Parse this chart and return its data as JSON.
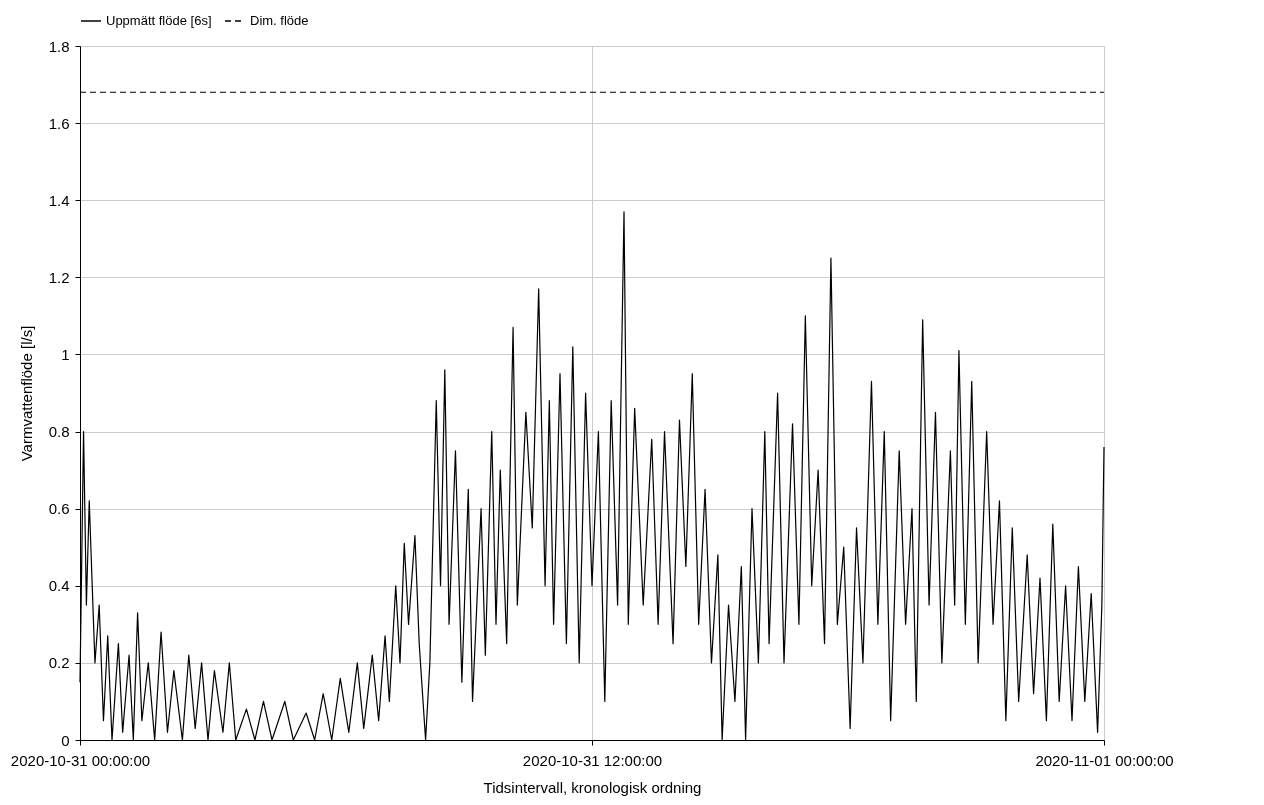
{
  "chart_data": {
    "type": "line",
    "xlabel": "Tidsintervall, kronologisk ordning",
    "ylabel": "Varmvattenflöde [l/s]",
    "xlim": [
      "2020-10-31T00:00",
      "2020-11-01T00:00"
    ],
    "xticks": [
      {
        "value": "2020-10-31T00:00",
        "label": "2020-10-31 00:00:00"
      },
      {
        "value": "2020-10-31T12:00",
        "label": "2020-10-31 12:00:00"
      },
      {
        "value": "2020-11-01T00:00",
        "label": "2020-11-01 00:00:00"
      }
    ],
    "ylim": [
      0,
      1.8
    ],
    "yticks": [
      0,
      0.2,
      0.4,
      0.6,
      0.8,
      1,
      1.2,
      1.4,
      1.6,
      1.8
    ],
    "grid": true,
    "legend": "top",
    "series": [
      {
        "name": "Uppmätt flöde [6s]",
        "color": "#000000",
        "line_style": "solid",
        "x": [
          "2020-10-31T00:00",
          "2020-10-31T00:05",
          "2020-10-31T00:09",
          "2020-10-31T00:13",
          "2020-10-31T00:21",
          "2020-10-31T00:27",
          "2020-10-31T00:33",
          "2020-10-31T00:39",
          "2020-10-31T00:45",
          "2020-10-31T00:54",
          "2020-10-31T01:00",
          "2020-10-31T01:09",
          "2020-10-31T01:15",
          "2020-10-31T01:21",
          "2020-10-31T01:27",
          "2020-10-31T01:36",
          "2020-10-31T01:45",
          "2020-10-31T01:54",
          "2020-10-31T02:03",
          "2020-10-31T02:12",
          "2020-10-31T02:24",
          "2020-10-31T02:33",
          "2020-10-31T02:42",
          "2020-10-31T02:51",
          "2020-10-31T03:00",
          "2020-10-31T03:09",
          "2020-10-31T03:21",
          "2020-10-31T03:30",
          "2020-10-31T03:39",
          "2020-10-31T03:54",
          "2020-10-31T04:06",
          "2020-10-31T04:18",
          "2020-10-31T04:30",
          "2020-10-31T04:48",
          "2020-10-31T05:00",
          "2020-10-31T05:18",
          "2020-10-31T05:30",
          "2020-10-31T05:42",
          "2020-10-31T05:54",
          "2020-10-31T06:06",
          "2020-10-31T06:18",
          "2020-10-31T06:30",
          "2020-10-31T06:39",
          "2020-10-31T06:51",
          "2020-10-31T07:00",
          "2020-10-31T07:09",
          "2020-10-31T07:15",
          "2020-10-31T07:24",
          "2020-10-31T07:30",
          "2020-10-31T07:36",
          "2020-10-31T07:42",
          "2020-10-31T07:51",
          "2020-10-31T07:57",
          "2020-10-31T08:06",
          "2020-10-31T08:12",
          "2020-10-31T08:21",
          "2020-10-31T08:27",
          "2020-10-31T08:33",
          "2020-10-31T08:39",
          "2020-10-31T08:48",
          "2020-10-31T08:57",
          "2020-10-31T09:06",
          "2020-10-31T09:12",
          "2020-10-31T09:24",
          "2020-10-31T09:30",
          "2020-10-31T09:39",
          "2020-10-31T09:45",
          "2020-10-31T09:51",
          "2020-10-31T10:00",
          "2020-10-31T10:09",
          "2020-10-31T10:15",
          "2020-10-31T10:27",
          "2020-10-31T10:36",
          "2020-10-31T10:45",
          "2020-10-31T10:54",
          "2020-10-31T11:00",
          "2020-10-31T11:06",
          "2020-10-31T11:15",
          "2020-10-31T11:24",
          "2020-10-31T11:33",
          "2020-10-31T11:42",
          "2020-10-31T11:51",
          "2020-10-31T12:00",
          "2020-10-31T12:09",
          "2020-10-31T12:18",
          "2020-10-31T12:27",
          "2020-10-31T12:36",
          "2020-10-31T12:45",
          "2020-10-31T12:51",
          "2020-10-31T13:00",
          "2020-10-31T13:12",
          "2020-10-31T13:24",
          "2020-10-31T13:33",
          "2020-10-31T13:42",
          "2020-10-31T13:54",
          "2020-10-31T14:03",
          "2020-10-31T14:12",
          "2020-10-31T14:21",
          "2020-10-31T14:30",
          "2020-10-31T14:39",
          "2020-10-31T14:48",
          "2020-10-31T14:57",
          "2020-10-31T15:03",
          "2020-10-31T15:12",
          "2020-10-31T15:21",
          "2020-10-31T15:30",
          "2020-10-31T15:36",
          "2020-10-31T15:45",
          "2020-10-31T15:54",
          "2020-10-31T16:03",
          "2020-10-31T16:09",
          "2020-10-31T16:21",
          "2020-10-31T16:30",
          "2020-10-31T16:42",
          "2020-10-31T16:51",
          "2020-10-31T17:00",
          "2020-10-31T17:09",
          "2020-10-31T17:18",
          "2020-10-31T17:27",
          "2020-10-31T17:36",
          "2020-10-31T17:45",
          "2020-10-31T17:54",
          "2020-10-31T18:03",
          "2020-10-31T18:12",
          "2020-10-31T18:21",
          "2020-10-31T18:33",
          "2020-10-31T18:42",
          "2020-10-31T18:51",
          "2020-10-31T19:00",
          "2020-10-31T19:12",
          "2020-10-31T19:21",
          "2020-10-31T19:30",
          "2020-10-31T19:36",
          "2020-10-31T19:45",
          "2020-10-31T19:54",
          "2020-10-31T20:03",
          "2020-10-31T20:12",
          "2020-10-31T20:24",
          "2020-10-31T20:30",
          "2020-10-31T20:36",
          "2020-10-31T20:45",
          "2020-10-31T20:54",
          "2020-10-31T21:03",
          "2020-10-31T21:15",
          "2020-10-31T21:24",
          "2020-10-31T21:33",
          "2020-10-31T21:42",
          "2020-10-31T21:51",
          "2020-10-31T22:00",
          "2020-10-31T22:12",
          "2020-10-31T22:21",
          "2020-10-31T22:30",
          "2020-10-31T22:39",
          "2020-10-31T22:48",
          "2020-10-31T22:57",
          "2020-10-31T23:06",
          "2020-10-31T23:15",
          "2020-10-31T23:24",
          "2020-10-31T23:33",
          "2020-10-31T23:42",
          "2020-10-31T23:51",
          "2020-10-31T23:57",
          "2020-11-01T00:00"
        ],
        "values": [
          0.15,
          0.8,
          0.35,
          0.62,
          0.2,
          0.35,
          0.05,
          0.27,
          0.0,
          0.25,
          0.02,
          0.22,
          0.0,
          0.33,
          0.05,
          0.2,
          0.0,
          0.28,
          0.02,
          0.18,
          0.0,
          0.22,
          0.03,
          0.2,
          0.0,
          0.18,
          0.02,
          0.2,
          0.0,
          0.08,
          0.0,
          0.1,
          0.0,
          0.1,
          0.0,
          0.07,
          0.0,
          0.12,
          0.0,
          0.16,
          0.02,
          0.2,
          0.03,
          0.22,
          0.05,
          0.27,
          0.1,
          0.4,
          0.2,
          0.51,
          0.3,
          0.53,
          0.25,
          0.0,
          0.2,
          0.88,
          0.4,
          0.96,
          0.3,
          0.75,
          0.15,
          0.65,
          0.1,
          0.6,
          0.22,
          0.8,
          0.3,
          0.7,
          0.25,
          1.07,
          0.35,
          0.85,
          0.55,
          1.17,
          0.4,
          0.88,
          0.3,
          0.95,
          0.25,
          1.02,
          0.2,
          0.9,
          0.4,
          0.8,
          0.1,
          0.88,
          0.35,
          1.37,
          0.3,
          0.86,
          0.35,
          0.78,
          0.3,
          0.8,
          0.25,
          0.83,
          0.45,
          0.95,
          0.3,
          0.65,
          0.2,
          0.48,
          0.0,
          0.35,
          0.1,
          0.45,
          0.0,
          0.6,
          0.2,
          0.8,
          0.25,
          0.9,
          0.2,
          0.82,
          0.3,
          1.1,
          0.4,
          0.7,
          0.25,
          1.25,
          0.3,
          0.5,
          0.03,
          0.55,
          0.2,
          0.93,
          0.3,
          0.8,
          0.05,
          0.75,
          0.3,
          0.6,
          0.1,
          1.09,
          0.35,
          0.85,
          0.2,
          0.75,
          0.35,
          1.01,
          0.3,
          0.93,
          0.2,
          0.8,
          0.3,
          0.62,
          0.05,
          0.55,
          0.1,
          0.48,
          0.12,
          0.42,
          0.05,
          0.56,
          0.1,
          0.4,
          0.05,
          0.45,
          0.1,
          0.38,
          0.02,
          0.35,
          0.76
        ]
      },
      {
        "name": "Dim. flöde",
        "color": "#000000",
        "line_style": "dashed",
        "x": [
          "2020-10-31T00:00",
          "2020-11-01T00:00"
        ],
        "values": [
          1.68,
          1.68
        ]
      }
    ]
  }
}
